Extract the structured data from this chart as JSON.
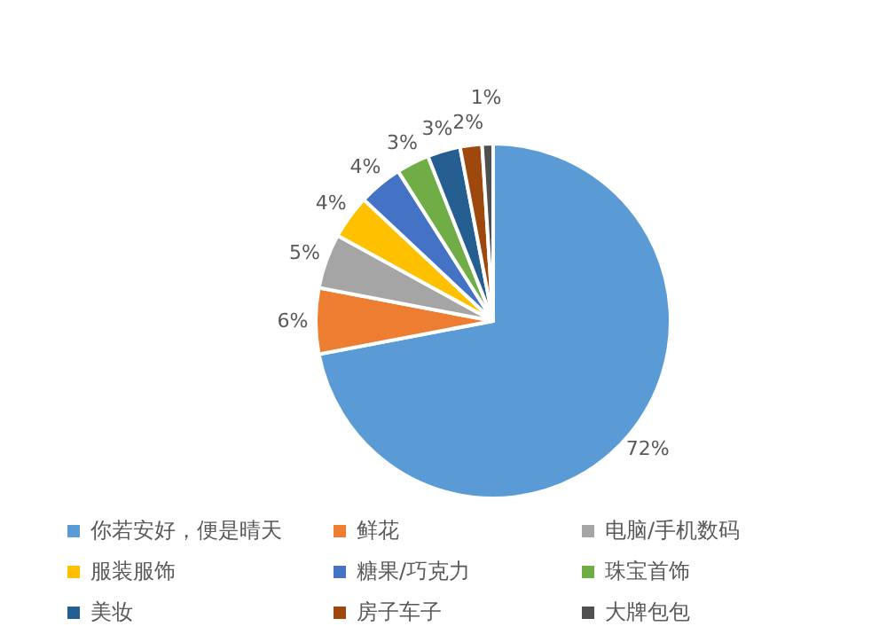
{
  "chart_data": {
    "type": "pie",
    "categories": [
      "你若安好，便是晴天",
      "鲜花",
      "电脑/手机数码",
      "服装服饰",
      "糖果/巧克力",
      "珠宝首饰",
      "美妆",
      "房子车子",
      "大牌包包"
    ],
    "values": [
      72,
      6,
      5,
      4,
      4,
      3,
      3,
      2,
      1
    ],
    "value_labels": [
      "72%",
      "6%",
      "5%",
      "4%",
      "4%",
      "3%",
      "3%",
      "2%",
      "1%"
    ],
    "colors": [
      "#5b9bd5",
      "#ed7d31",
      "#a5a5a5",
      "#ffc000",
      "#4472c4",
      "#70ad47",
      "#255e91",
      "#9e480e",
      "#505050"
    ],
    "legend": "bottom"
  }
}
